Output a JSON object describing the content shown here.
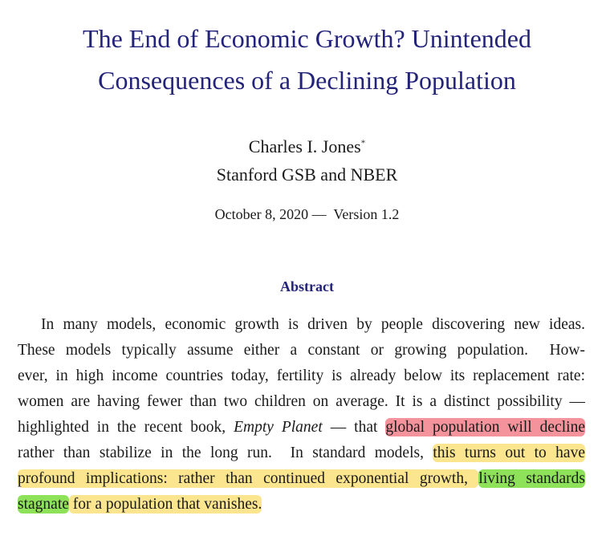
{
  "header": {
    "title_lines": [
      "The End of Economic Growth? Unintended",
      "Consequences of a Declining Population"
    ],
    "author": "Charles I. Jones",
    "author_mark": "*",
    "affiliation": "Stanford GSB and NBER",
    "date": "October 8, 2020",
    "date_separator": "—",
    "version": "Version 1.2"
  },
  "abstract": {
    "heading": "Abstract",
    "lines": [
      [
        {
          "text": "In many models, economic growth is driven by people discovering new ideas."
        }
      ],
      [
        {
          "text": "These models typically assume either a constant or growing population.  How-"
        }
      ],
      [
        {
          "text": "ever, in high income countries today, fertility is already below its replacement rate:"
        }
      ],
      [
        {
          "text": "women are having fewer than two children on average. It is a distinct possibility —"
        }
      ],
      [
        {
          "text": "highlighted in the recent book, "
        },
        {
          "text": "Empty Planet",
          "style": "italic"
        },
        {
          "text": " — that "
        },
        {
          "text": "global population will decline",
          "highlight": "#f4939c"
        }
      ],
      [
        {
          "text": "rather than stabilize in the long run.  In standard models, "
        },
        {
          "text": "this turns out to have",
          "highlight": "#fbe58f"
        }
      ],
      [
        {
          "text": "profound implications: rather than continued exponential growth, ",
          "highlight": "#fbe58f"
        },
        {
          "text": "living standards",
          "highlight": "#8ee25a"
        }
      ],
      [
        {
          "text": "stagnate",
          "highlight": "#8ee25a"
        },
        {
          "text": " for a population that vanishes.",
          "highlight": "#fbe58f"
        }
      ]
    ]
  }
}
